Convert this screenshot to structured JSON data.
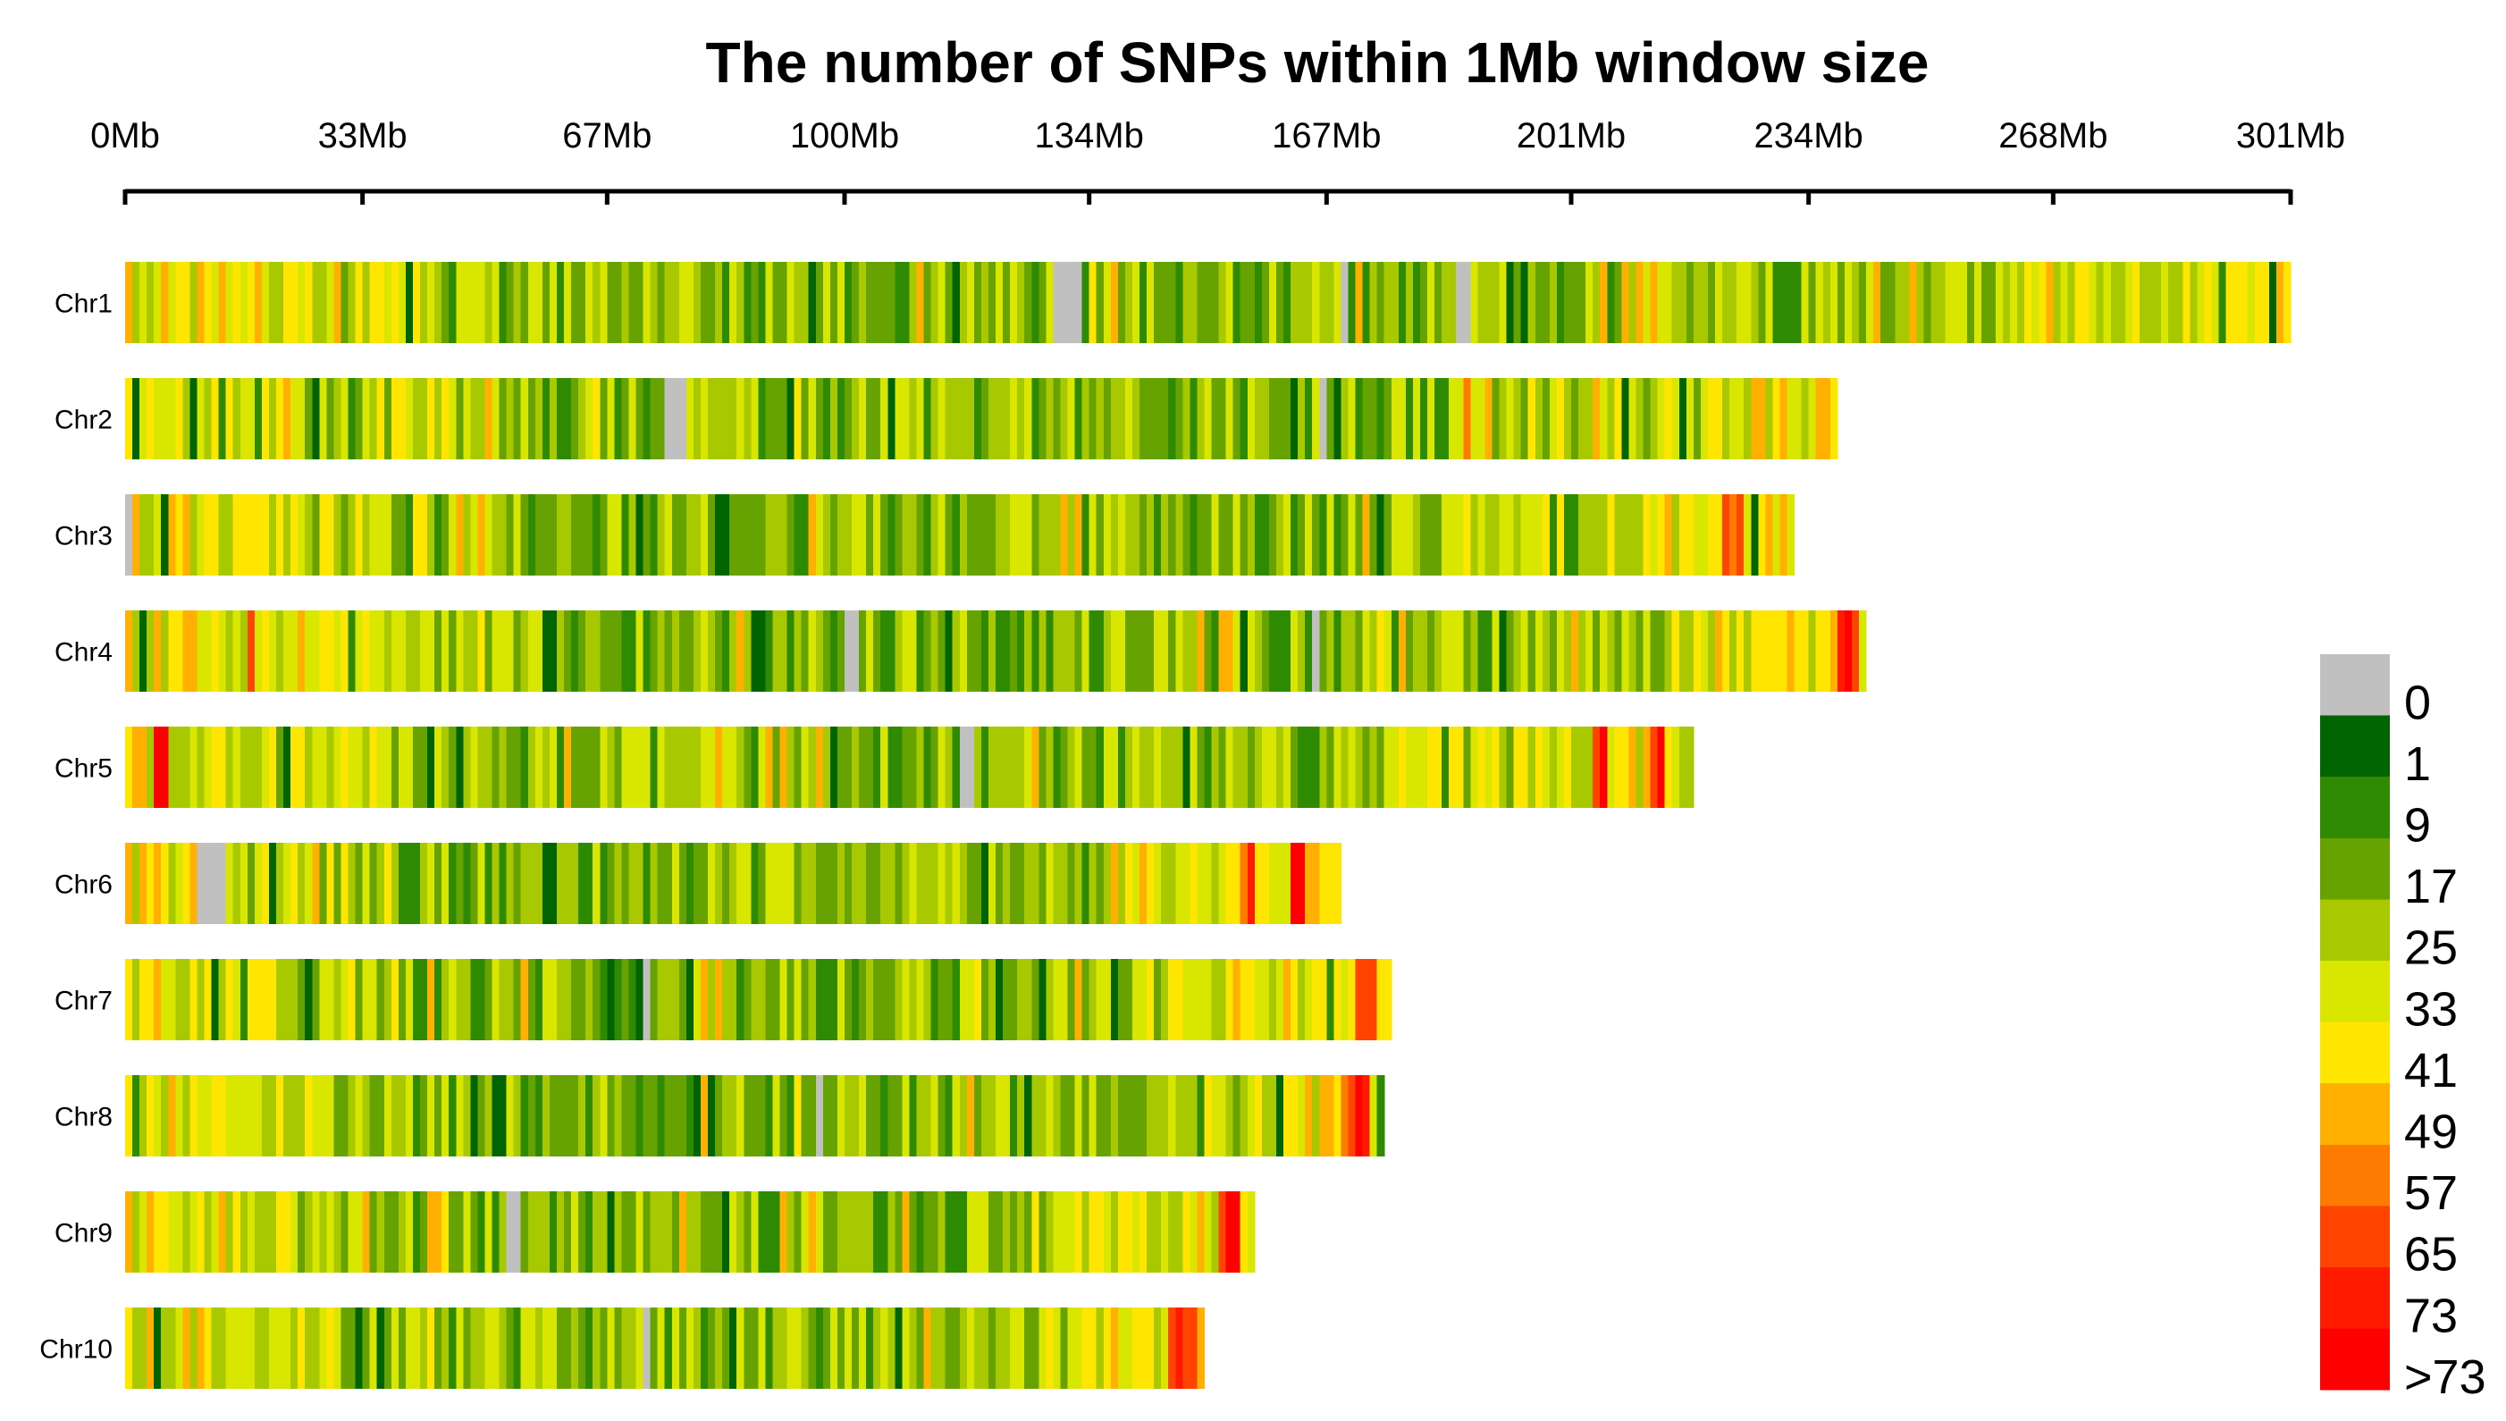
{
  "chart_data": {
    "type": "heatmap",
    "title": "The number of SNPs within 1Mb window size",
    "xlabel": "",
    "ylabel": "",
    "window_size_mb": 1,
    "axis": {
      "min_mb": 0,
      "max_mb": 301,
      "ticks": [
        {
          "value": 0,
          "label": "0Mb"
        },
        {
          "value": 33,
          "label": "33Mb"
        },
        {
          "value": 67,
          "label": "67Mb"
        },
        {
          "value": 100,
          "label": "100Mb"
        },
        {
          "value": 134,
          "label": "134Mb"
        },
        {
          "value": 167,
          "label": "167Mb"
        },
        {
          "value": 201,
          "label": "201Mb"
        },
        {
          "value": 234,
          "label": "234Mb"
        },
        {
          "value": 268,
          "label": "268Mb"
        },
        {
          "value": 301,
          "label": "301Mb"
        }
      ]
    },
    "legend": {
      "position": "right",
      "bins": [
        {
          "label": "0",
          "color": "#c0c0c0"
        },
        {
          "label": "1",
          "color": "#006400"
        },
        {
          "label": "9",
          "color": "#2e8a00"
        },
        {
          "label": "17",
          "color": "#66a300"
        },
        {
          "label": "25",
          "color": "#a8c800"
        },
        {
          "label": "33",
          "color": "#d8e600"
        },
        {
          "label": "41",
          "color": "#ffe600"
        },
        {
          "label": "49",
          "color": "#ffb000"
        },
        {
          "label": "57",
          "color": "#ff7a00"
        },
        {
          "label": "65",
          "color": "#ff4400"
        },
        {
          "label": "73",
          "color": "#ff1a00"
        },
        {
          "label": ">73",
          "color": "#ff0000"
        }
      ]
    },
    "chromosomes": [
      {
        "name": "Chr1",
        "length_mb": 301,
        "gaps_mb": [
          [
            129,
            133
          ],
          [
            169,
            170
          ],
          [
            185,
            187
          ]
        ],
        "hot_mb": [],
        "pattern_seed": 11
      },
      {
        "name": "Chr2",
        "length_mb": 238,
        "gaps_mb": [
          [
            75,
            78
          ],
          [
            166,
            167
          ]
        ],
        "hot_mb": [
          [
            186,
            187
          ]
        ],
        "pattern_seed": 23
      },
      {
        "name": "Chr3",
        "length_mb": 232,
        "gaps_mb": [
          [
            0,
            1
          ]
        ],
        "hot_mb": [
          [
            222,
            225
          ]
        ],
        "pattern_seed": 37
      },
      {
        "name": "Chr4",
        "length_mb": 242,
        "gaps_mb": [
          [
            100,
            102
          ],
          [
            165,
            166
          ]
        ],
        "hot_mb": [
          [
            17,
            18
          ],
          [
            238,
            241
          ]
        ],
        "pattern_seed": 41
      },
      {
        "name": "Chr5",
        "length_mb": 218,
        "gaps_mb": [
          [
            116,
            118
          ]
        ],
        "hot_mb": [
          [
            4,
            6
          ],
          [
            204,
            206
          ],
          [
            212,
            214
          ]
        ],
        "pattern_seed": 53
      },
      {
        "name": "Chr6",
        "length_mb": 169,
        "gaps_mb": [
          [
            10,
            14
          ]
        ],
        "hot_mb": [
          [
            155,
            157
          ],
          [
            162,
            164
          ]
        ],
        "pattern_seed": 67
      },
      {
        "name": "Chr7",
        "length_mb": 176,
        "gaps_mb": [
          [
            72,
            73
          ]
        ],
        "hot_mb": [
          [
            171,
            174
          ]
        ],
        "pattern_seed": 71
      },
      {
        "name": "Chr8",
        "length_mb": 175,
        "gaps_mb": [
          [
            96,
            97
          ]
        ],
        "hot_mb": [
          [
            169,
            173
          ]
        ],
        "pattern_seed": 83
      },
      {
        "name": "Chr9",
        "length_mb": 157,
        "gaps_mb": [
          [
            53,
            55
          ]
        ],
        "hot_mb": [
          [
            152,
            155
          ]
        ],
        "pattern_seed": 97
      },
      {
        "name": "Chr10",
        "length_mb": 150,
        "gaps_mb": [
          [
            72,
            73
          ]
        ],
        "hot_mb": [
          [
            145,
            149
          ]
        ],
        "pattern_seed": 101
      }
    ]
  }
}
